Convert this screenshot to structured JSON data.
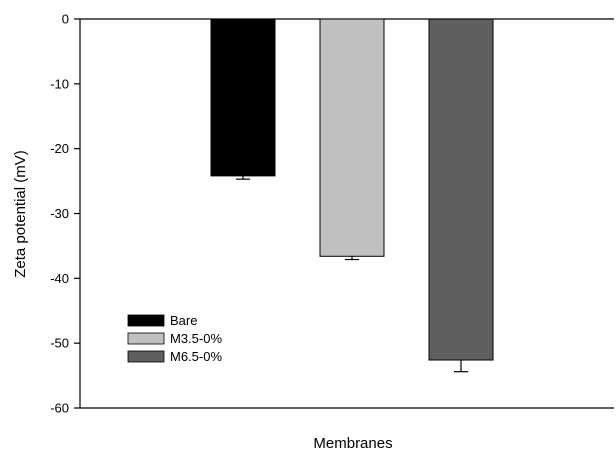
{
  "chart_data": {
    "type": "bar",
    "title": "",
    "xlabel": "Membranes",
    "ylabel": "Zeta potential (mV)",
    "ylim": [
      -60,
      0
    ],
    "yticks": [
      0,
      -10,
      -20,
      -30,
      -40,
      -50,
      -60
    ],
    "grid": false,
    "legend_position": "bottom-left",
    "series": [
      {
        "name": "Bare",
        "value": -24.2,
        "error": 0.5,
        "color": "#000000"
      },
      {
        "name": "M3.5-0%",
        "value": -36.6,
        "error": 0.5,
        "color": "#c0c0c0"
      },
      {
        "name": "M6.5-0%",
        "value": -52.6,
        "error": 1.8,
        "color": "#5f5f5f"
      }
    ]
  }
}
